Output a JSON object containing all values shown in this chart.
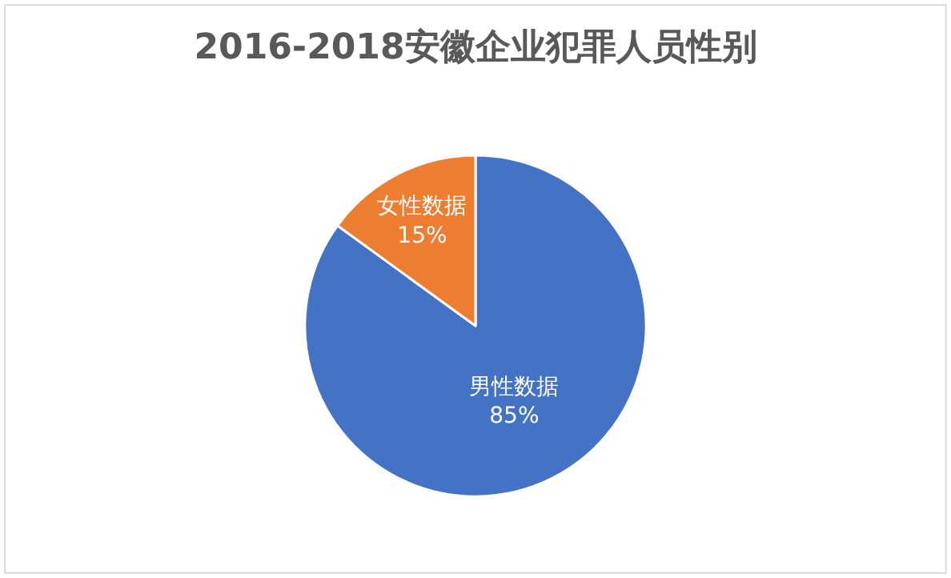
{
  "chart_data": {
    "type": "pie",
    "title": "2016-2018安徽企业犯罪人员性别",
    "categories": [
      "男性数据",
      "女性数据"
    ],
    "values": [
      85,
      15
    ],
    "value_labels": [
      "85%",
      "15%"
    ],
    "colors": [
      "#4472c4",
      "#ed7d31"
    ],
    "legend": false
  }
}
